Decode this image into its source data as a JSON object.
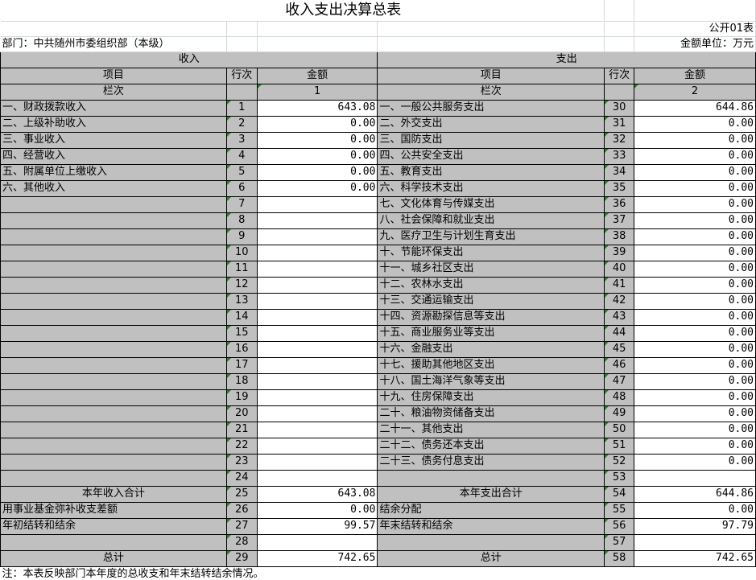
{
  "title": "收入支出决算总表",
  "form_no": "公开01表",
  "department": "部门：中共随州市委组织部（本级）",
  "unit": "金额单位：万元",
  "headers": {
    "income": "收入",
    "expense": "支出",
    "item": "项目",
    "line": "行次",
    "amount": "金额",
    "column_label": "栏次",
    "income_col": "1",
    "expense_col": "2"
  },
  "rows": [
    {
      "il": "一、财政拨款收入",
      "in": "1",
      "ia": "643.08",
      "el": "一、一般公共服务支出",
      "en": "30",
      "ea": "644.86"
    },
    {
      "il": "二、上级补助收入",
      "in": "2",
      "ia": "0.00",
      "el": "二、外交支出",
      "en": "31",
      "ea": "0.00"
    },
    {
      "il": "三、事业收入",
      "in": "3",
      "ia": "0.00",
      "el": "三、国防支出",
      "en": "32",
      "ea": "0.00"
    },
    {
      "il": "四、经营收入",
      "in": "4",
      "ia": "0.00",
      "el": "四、公共安全支出",
      "en": "33",
      "ea": "0.00"
    },
    {
      "il": "五、附属单位上缴收入",
      "in": "5",
      "ia": "0.00",
      "el": "五、教育支出",
      "en": "34",
      "ea": "0.00"
    },
    {
      "il": "六、其他收入",
      "in": "6",
      "ia": "0.00",
      "el": "六、科学技术支出",
      "en": "35",
      "ea": "0.00"
    },
    {
      "il": "",
      "in": "7",
      "ia": "",
      "el": "七、文化体育与传媒支出",
      "en": "36",
      "ea": "0.00"
    },
    {
      "il": "",
      "in": "8",
      "ia": "",
      "el": "八、社会保障和就业支出",
      "en": "37",
      "ea": "0.00"
    },
    {
      "il": "",
      "in": "9",
      "ia": "",
      "el": "九、医疗卫生与计划生育支出",
      "en": "38",
      "ea": "0.00"
    },
    {
      "il": "",
      "in": "10",
      "ia": "",
      "el": "十、节能环保支出",
      "en": "39",
      "ea": "0.00"
    },
    {
      "il": "",
      "in": "11",
      "ia": "",
      "el": "十一、城乡社区支出",
      "en": "40",
      "ea": "0.00"
    },
    {
      "il": "",
      "in": "12",
      "ia": "",
      "el": "十二、农林水支出",
      "en": "41",
      "ea": "0.00"
    },
    {
      "il": "",
      "in": "13",
      "ia": "",
      "el": "十三、交通运输支出",
      "en": "42",
      "ea": "0.00"
    },
    {
      "il": "",
      "in": "14",
      "ia": "",
      "el": "十四、资源勘探信息等支出",
      "en": "43",
      "ea": "0.00"
    },
    {
      "il": "",
      "in": "15",
      "ia": "",
      "el": "十五、商业服务业等支出",
      "en": "44",
      "ea": "0.00"
    },
    {
      "il": "",
      "in": "16",
      "ia": "",
      "el": "十六、金融支出",
      "en": "45",
      "ea": "0.00"
    },
    {
      "il": "",
      "in": "17",
      "ia": "",
      "el": "十七、援助其他地区支出",
      "en": "46",
      "ea": "0.00"
    },
    {
      "il": "",
      "in": "18",
      "ia": "",
      "el": "十八、国土海洋气象等支出",
      "en": "47",
      "ea": "0.00"
    },
    {
      "il": "",
      "in": "19",
      "ia": "",
      "el": "十九、住房保障支出",
      "en": "48",
      "ea": "0.00"
    },
    {
      "il": "",
      "in": "20",
      "ia": "",
      "el": "二十、粮油物资储备支出",
      "en": "49",
      "ea": "0.00"
    },
    {
      "il": "",
      "in": "21",
      "ia": "",
      "el": "二十一、其他支出",
      "en": "50",
      "ea": "0.00"
    },
    {
      "il": "",
      "in": "22",
      "ia": "",
      "el": "二十二、债务还本支出",
      "en": "51",
      "ea": "0.00"
    },
    {
      "il": "",
      "in": "23",
      "ia": "",
      "el": "二十三、债务付息支出",
      "en": "52",
      "ea": "0.00"
    },
    {
      "il": "",
      "in": "24",
      "ia": "",
      "el": "",
      "en": "53",
      "ea": ""
    },
    {
      "il": "本年收入合计",
      "in": "25",
      "ia": "643.08",
      "el": "本年支出合计",
      "en": "54",
      "ea": "644.86",
      "center": true
    },
    {
      "il": "用事业基金弥补收支差额",
      "in": "26",
      "ia": "0.00",
      "el": "结余分配",
      "en": "55",
      "ea": "0.00"
    },
    {
      "il": "年初结转和结余",
      "in": "27",
      "ia": "99.57",
      "el": "年末结转和结余",
      "en": "56",
      "ea": "97.79"
    },
    {
      "il": "",
      "in": "28",
      "ia": "",
      "el": "",
      "en": "57",
      "ea": ""
    },
    {
      "il": "总计",
      "in": "29",
      "ia": "742.65",
      "el": "总计",
      "en": "58",
      "ea": "742.65",
      "center": true
    }
  ],
  "note": "注：本表反映部门本年度的总收支和年末结转结余情况。"
}
